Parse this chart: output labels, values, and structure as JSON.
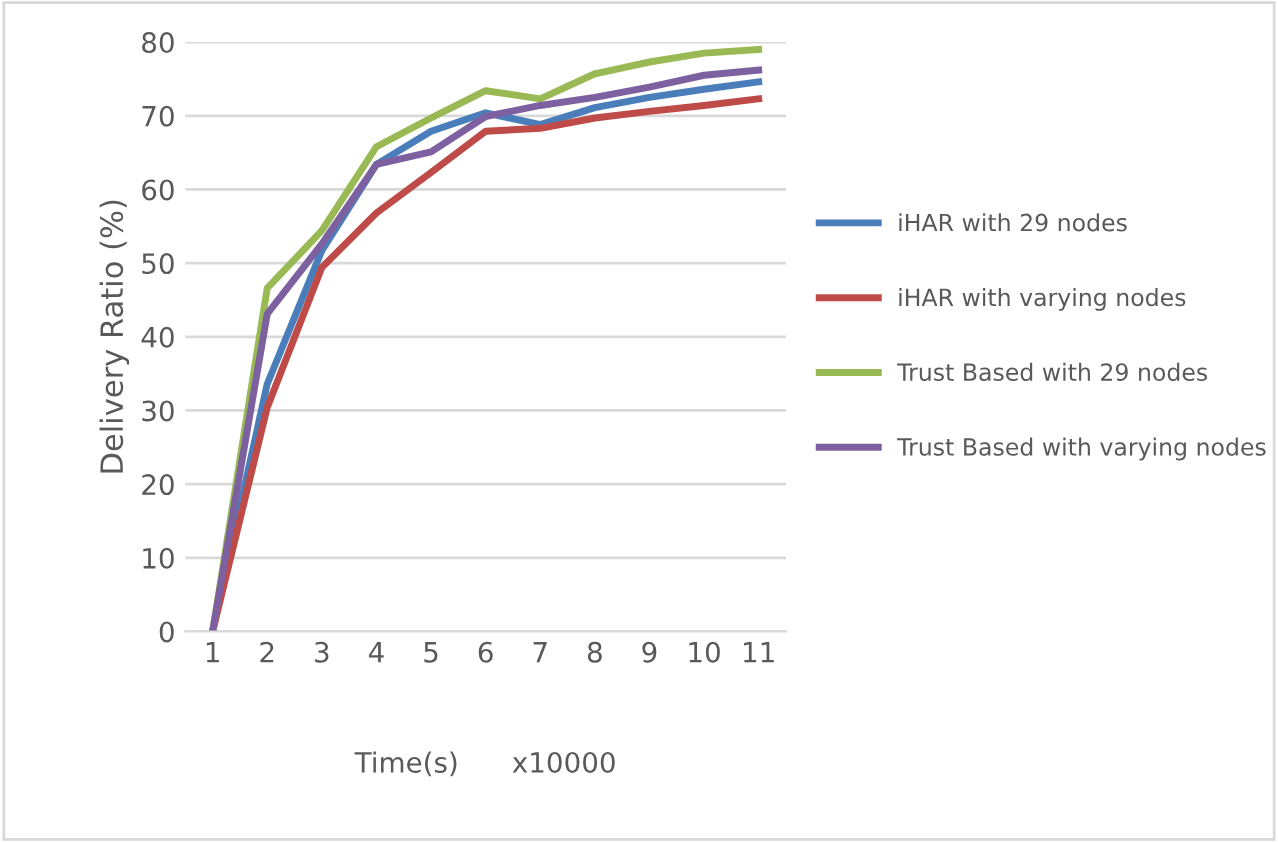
{
  "chart_data": {
    "type": "line",
    "xlabel": "Time(s)      x10000",
    "ylabel": "Delivery Ratio (%)",
    "categories": [
      "1",
      "2",
      "3",
      "4",
      "5",
      "6",
      "7",
      "8",
      "9",
      "10",
      "11"
    ],
    "series": [
      {
        "name": "iHAR with 29 nodes",
        "color": "#4a7ebb",
        "values": [
          0,
          33.6,
          51.7,
          63.4,
          67.9,
          70.4,
          68.8,
          71.1,
          72.5,
          73.6,
          74.6
        ]
      },
      {
        "name": "iHAR with varying nodes",
        "color": "#be4b48",
        "values": [
          0,
          30.4,
          49.4,
          56.8,
          62.3,
          67.9,
          68.3,
          69.7,
          70.6,
          71.4,
          72.3
        ]
      },
      {
        "name": "Trust Based with 29 nodes",
        "color": "#98b954",
        "values": [
          0,
          46.6,
          54.4,
          65.8,
          69.7,
          73.4,
          72.3,
          75.7,
          77.3,
          78.5,
          79.0
        ]
      },
      {
        "name": "Trust Based with varying nodes",
        "color": "#7d60a0",
        "values": [
          0,
          43.1,
          52.6,
          63.4,
          65.1,
          69.9,
          71.4,
          72.5,
          73.9,
          75.5,
          76.2
        ]
      }
    ],
    "ylim": [
      0,
      80
    ],
    "yticks": [
      0,
      10,
      20,
      30,
      40,
      50,
      60,
      70,
      80
    ],
    "grid": "y",
    "legend": "right"
  }
}
